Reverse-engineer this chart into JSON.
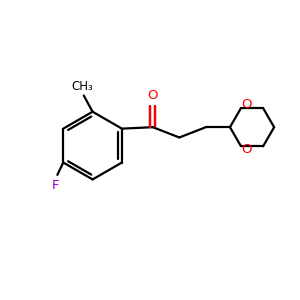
{
  "bg_color": "#ffffff",
  "bond_color": "#000000",
  "O_color": "#ff0000",
  "F_color": "#9900cc",
  "line_width": 1.6,
  "figsize": [
    3.0,
    3.0
  ],
  "dpi": 100,
  "xlim": [
    0,
    10
  ],
  "ylim": [
    0,
    10
  ]
}
